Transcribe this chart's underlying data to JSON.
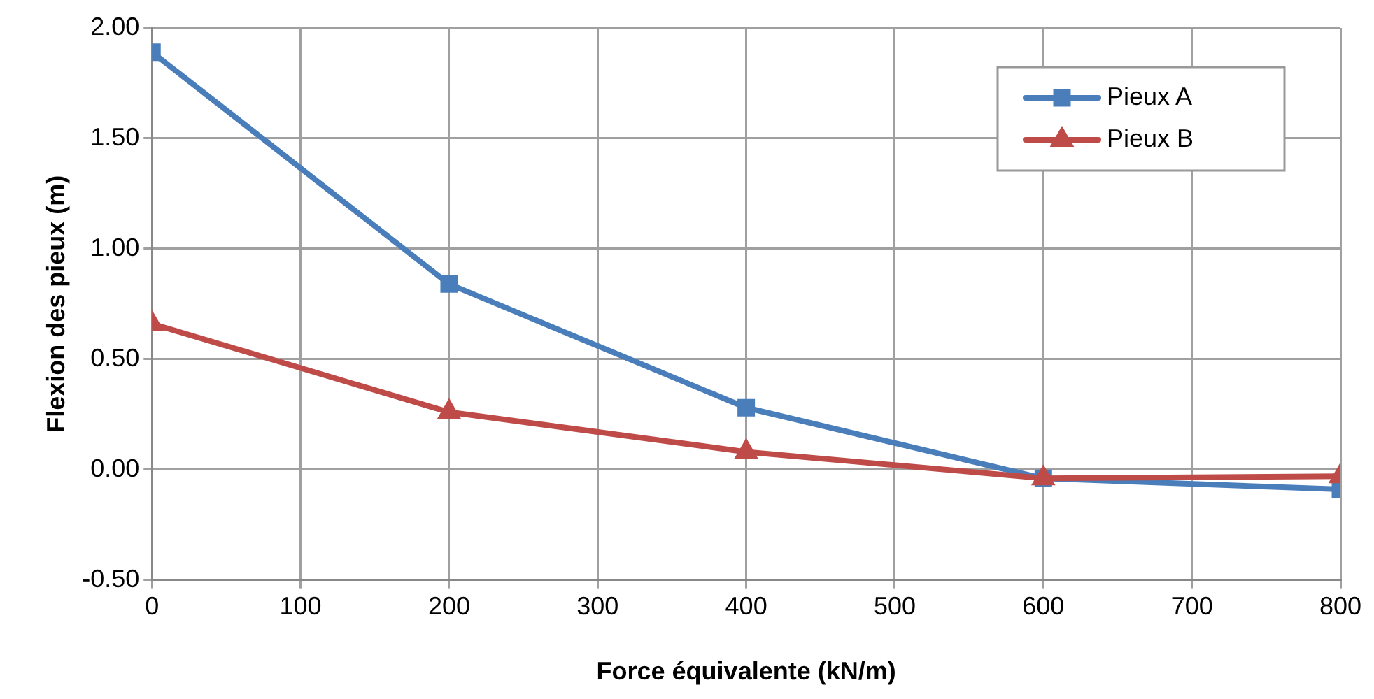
{
  "chart_data": {
    "type": "line",
    "xlabel": "Force équivalente (kN/m)",
    "ylabel": "Flexion des pieux (m)",
    "x": [
      0,
      200,
      400,
      600,
      800
    ],
    "series": [
      {
        "name": "Pieux A",
        "color": "#4a7ebb",
        "marker": "square",
        "values": [
          1.89,
          0.84,
          0.28,
          -0.04,
          -0.09
        ]
      },
      {
        "name": "Pieux B",
        "color": "#be4b48",
        "marker": "triangle",
        "values": [
          0.66,
          0.26,
          0.08,
          -0.04,
          -0.03
        ]
      }
    ],
    "xlim": [
      0,
      800
    ],
    "xticks": [
      0,
      100,
      200,
      300,
      400,
      500,
      600,
      700,
      800
    ],
    "ylim": [
      -0.5,
      2
    ],
    "yticks": [
      {
        "value": -0.5,
        "label": "-0.50"
      },
      {
        "value": 0,
        "label": "0.00"
      },
      {
        "value": 0.5,
        "label": "0.50"
      },
      {
        "value": 1,
        "label": "1.00"
      },
      {
        "value": 1.5,
        "label": "1.50"
      },
      {
        "value": 2,
        "label": "2.00"
      }
    ],
    "grid": true,
    "legend": "top right",
    "line_style": "solid"
  }
}
